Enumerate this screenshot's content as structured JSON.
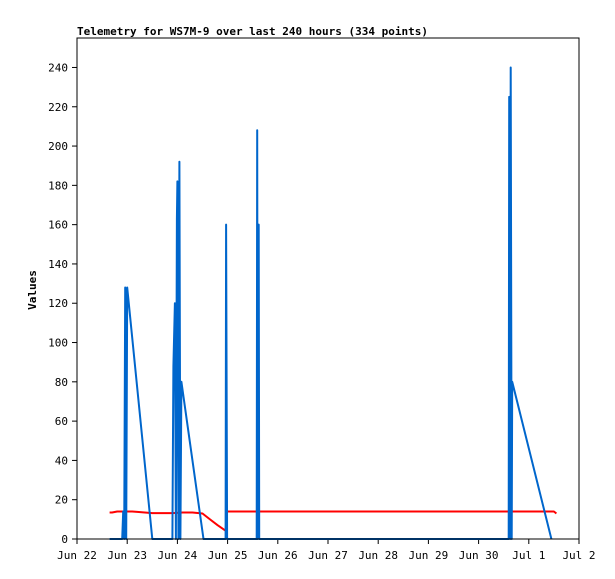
{
  "chart_data": {
    "type": "line",
    "title": "Telemetry for WS7M-9 over last 240 hours (334 points)",
    "xlabel": "",
    "ylabel": "Values",
    "ylim": [
      0,
      255
    ],
    "yticks": [
      0,
      20,
      40,
      60,
      80,
      100,
      120,
      140,
      160,
      180,
      200,
      220,
      240
    ],
    "xlim": [
      0,
      10
    ],
    "xticks": [
      {
        "label": "Jun 22",
        "day": 0
      },
      {
        "label": "Jun 23",
        "day": 1
      },
      {
        "label": "Jun 24",
        "day": 2
      },
      {
        "label": "Jun 25",
        "day": 3
      },
      {
        "label": "Jun 26",
        "day": 4
      },
      {
        "label": "Jun 27",
        "day": 5
      },
      {
        "label": "Jun 28",
        "day": 6
      },
      {
        "label": "Jun 29",
        "day": 7
      },
      {
        "label": "Jun 30",
        "day": 8
      },
      {
        "label": "Jul 1",
        "day": 9
      },
      {
        "label": "Jul 2",
        "day": 10
      }
    ],
    "grid": false,
    "series": [
      {
        "color": "#ff0000",
        "points": [
          [
            0.65,
            13.5
          ],
          [
            0.7,
            13.5
          ],
          [
            0.8,
            14
          ],
          [
            0.95,
            14
          ],
          [
            1.0,
            14
          ],
          [
            1.1,
            14
          ],
          [
            1.2,
            13.8
          ],
          [
            1.35,
            13.5
          ],
          [
            1.5,
            13.2
          ],
          [
            1.7,
            13.2
          ],
          [
            1.9,
            13.2
          ],
          [
            2.1,
            13.5
          ],
          [
            2.3,
            13.5
          ],
          [
            2.5,
            13.0
          ],
          [
            2.65,
            10
          ],
          [
            2.8,
            7
          ],
          [
            2.97,
            4
          ],
          [
            2.98,
            14
          ],
          [
            3.5,
            14
          ],
          [
            4.5,
            14
          ],
          [
            5.5,
            14
          ],
          [
            6.5,
            14
          ],
          [
            7.5,
            14
          ],
          [
            8.5,
            14
          ],
          [
            9.3,
            14
          ],
          [
            9.5,
            14
          ],
          [
            9.55,
            13
          ]
        ]
      },
      {
        "color": "#0066cc",
        "points": [
          [
            0.65,
            0
          ],
          [
            0.9,
            0
          ],
          [
            0.92,
            14
          ],
          [
            0.94,
            0
          ],
          [
            0.96,
            128
          ],
          [
            0.98,
            0
          ],
          [
            1.0,
            128
          ],
          [
            1.5,
            0
          ],
          [
            1.9,
            0
          ],
          [
            1.92,
            88
          ],
          [
            1.95,
            120
          ],
          [
            1.97,
            0
          ],
          [
            1.99,
            163
          ],
          [
            2.0,
            182
          ],
          [
            2.02,
            0
          ],
          [
            2.04,
            192
          ],
          [
            2.06,
            0
          ],
          [
            2.08,
            80
          ],
          [
            2.52,
            0
          ],
          [
            2.96,
            0
          ],
          [
            2.97,
            160
          ],
          [
            2.99,
            0
          ],
          [
            3.58,
            0
          ],
          [
            3.59,
            208
          ],
          [
            3.6,
            0
          ],
          [
            3.62,
            160
          ],
          [
            3.63,
            0
          ],
          [
            8.6,
            0
          ],
          [
            8.61,
            225
          ],
          [
            8.63,
            0
          ],
          [
            8.64,
            240
          ],
          [
            8.66,
            0
          ],
          [
            8.67,
            80
          ],
          [
            9.45,
            0
          ]
        ]
      },
      {
        "color": "#000000",
        "points": [
          [
            0.65,
            0
          ],
          [
            9.6,
            0
          ]
        ]
      }
    ]
  }
}
